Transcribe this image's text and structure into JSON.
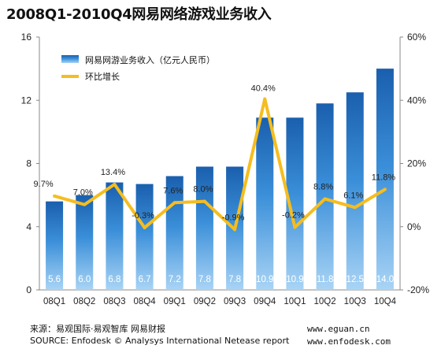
{
  "chart_data": {
    "type": "bar+line",
    "title": "2008Q1-2010Q4网易网络游戏业务收入",
    "categories": [
      "08Q1",
      "08Q2",
      "08Q3",
      "08Q4",
      "09Q1",
      "09Q2",
      "09Q3",
      "09Q4",
      "10Q1",
      "10Q2",
      "10Q3",
      "10Q4"
    ],
    "series": [
      {
        "name": "网易网游业务收入（亿元人民币）",
        "type": "bar",
        "axis": "left",
        "values": [
          5.6,
          6.0,
          6.8,
          6.7,
          7.2,
          7.8,
          7.8,
          10.9,
          10.9,
          11.8,
          12.5,
          14.0
        ],
        "labels": [
          "5.6",
          "6.0",
          "6.8",
          "6.7",
          "7.2",
          "7.8",
          "7.8",
          "10.9",
          "10.9",
          "11.8",
          "12.5",
          "14.0"
        ]
      },
      {
        "name": "环比增长",
        "type": "line",
        "axis": "right",
        "values": [
          9.7,
          7.0,
          13.4,
          -0.3,
          7.6,
          8.0,
          -0.9,
          40.4,
          -0.2,
          8.8,
          6.1,
          11.8
        ],
        "labels": [
          "9.7%",
          "7.0%",
          "13.4%",
          "-0.3%",
          "7.6%",
          "8.0%",
          "-0.9%",
          "40.4%",
          "-0.2%",
          "8.8%",
          "6.1%",
          "11.8%"
        ]
      }
    ],
    "y_left": {
      "min": 0,
      "max": 16,
      "ticks": [
        "0",
        "4",
        "8",
        "12",
        "16"
      ]
    },
    "y_right": {
      "min": -20,
      "max": 60,
      "ticks": [
        "-20%",
        "0%",
        "20%",
        "40%",
        "60%"
      ]
    },
    "legend_position": "top-left",
    "colors": {
      "bar_top": "#1a5fae",
      "bar_mid": "#3b8fd9",
      "bar_bottom": "#a9d4f5",
      "line": "#f5bd1f",
      "bar_label": "#ffffff"
    }
  },
  "footer": {
    "source_cn": "来源：易观国际·易观智库  网易财报",
    "source_en": "SOURCE: Enfodesk © Analysys International   Netease report",
    "site1": "www.eguan.cn",
    "site2": "www.enfodesk.com"
  }
}
